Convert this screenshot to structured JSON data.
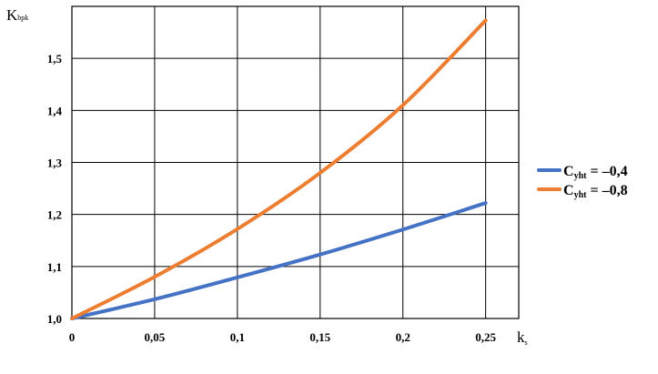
{
  "chart_data": {
    "type": "line",
    "xlabel": {
      "main": "k",
      "sub": "s"
    },
    "ylabel": {
      "main": "K",
      "sub": "bpk"
    },
    "xlim": [
      0,
      0.27
    ],
    "ylim": [
      1.0,
      1.6
    ],
    "x_ticks": [
      {
        "value": 0,
        "label": "0"
      },
      {
        "value": 0.05,
        "label": "0,05"
      },
      {
        "value": 0.1,
        "label": "0,1"
      },
      {
        "value": 0.15,
        "label": "0,15"
      },
      {
        "value": 0.2,
        "label": "0,2"
      },
      {
        "value": 0.25,
        "label": "0,25"
      }
    ],
    "y_ticks": [
      {
        "value": 1.0,
        "label": "1,0"
      },
      {
        "value": 1.1,
        "label": "1,1"
      },
      {
        "value": 1.2,
        "label": "1,2"
      },
      {
        "value": 1.3,
        "label": "1,3"
      },
      {
        "value": 1.4,
        "label": "1,4"
      },
      {
        "value": 1.5,
        "label": "1,5"
      }
    ],
    "grid": true,
    "legend_position": "right",
    "series": [
      {
        "name": {
          "main": "C",
          "sub": "yht",
          "rest": " = –0,4"
        },
        "color": "#4472c4",
        "x": [
          0,
          0.05,
          0.1,
          0.15,
          0.2,
          0.25
        ],
        "y": [
          1.0,
          1.037,
          1.079,
          1.123,
          1.171,
          1.222
        ]
      },
      {
        "name": {
          "main": "C",
          "sub": "yht",
          "rest": " = –0,8"
        },
        "color": "#ed7d31",
        "x": [
          0,
          0.05,
          0.1,
          0.15,
          0.2,
          0.25
        ],
        "y": [
          1.0,
          1.08,
          1.172,
          1.28,
          1.41,
          1.573
        ]
      }
    ]
  }
}
